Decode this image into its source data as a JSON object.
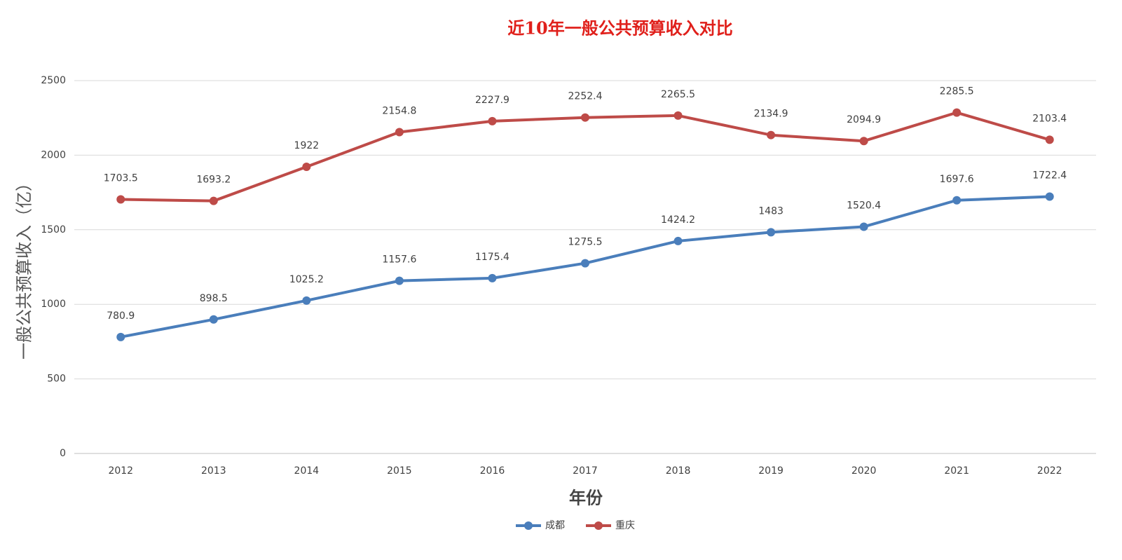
{
  "chart_data": {
    "type": "line",
    "title": "近10年一般公共预算收入对比",
    "x_label": "年份",
    "y_label": "一般公共预算收入（亿）",
    "categories": [
      "2012",
      "2013",
      "2014",
      "2015",
      "2016",
      "2017",
      "2018",
      "2019",
      "2020",
      "2021",
      "2022"
    ],
    "series": [
      {
        "name": "成都",
        "color": "#4a7ebb",
        "values": [
          780.9,
          898.5,
          1025.2,
          1157.6,
          1175.4,
          1275.5,
          1424.2,
          1483,
          1520.4,
          1697.6,
          1722.4
        ]
      },
      {
        "name": "重庆",
        "color": "#be4b48",
        "values": [
          1703.5,
          1693.2,
          1922,
          2154.8,
          2227.9,
          2252.4,
          2265.5,
          2134.9,
          2094.9,
          2285.5,
          2103.4
        ]
      }
    ],
    "ylim": [
      0,
      2500
    ],
    "yticks": [
      0,
      500,
      1000,
      1500,
      2000,
      2500
    ],
    "grid": true,
    "legend": "bottom"
  }
}
